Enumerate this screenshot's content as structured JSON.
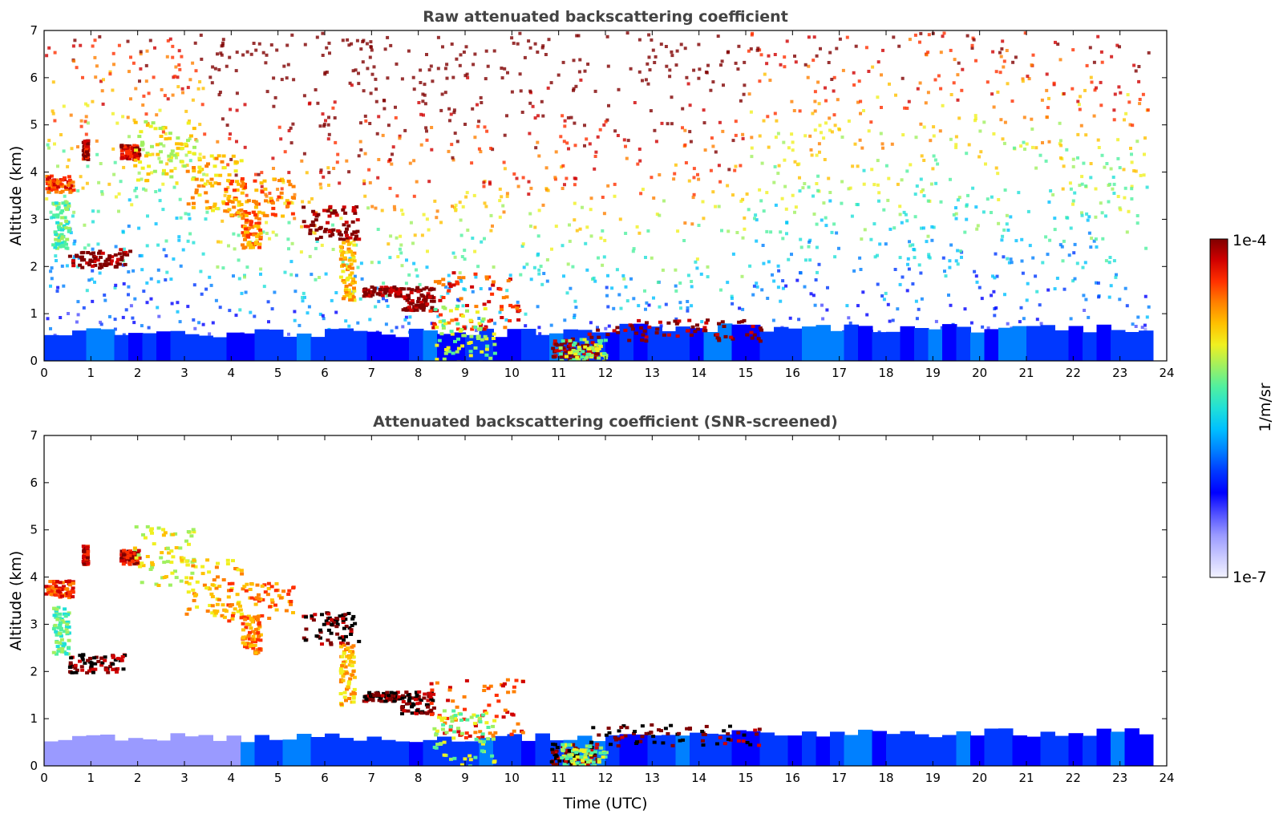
{
  "chart_data": [
    {
      "type": "heatmap",
      "title": "Raw attenuated backscattering coefficient",
      "xlabel": "",
      "ylabel": "Altitude (km)",
      "xlim": [
        0,
        24
      ],
      "ylim": [
        0,
        7
      ],
      "xticks": [
        "0",
        "1",
        "2",
        "3",
        "4",
        "5",
        "6",
        "7",
        "8",
        "9",
        "10",
        "11",
        "12",
        "13",
        "14",
        "15",
        "16",
        "17",
        "18",
        "19",
        "20",
        "21",
        "22",
        "23",
        "24"
      ],
      "yticks": [
        "0",
        "1",
        "2",
        "3",
        "4",
        "5",
        "6",
        "7"
      ],
      "data_end_hour": 23.6,
      "features": [
        {
          "name": "boundary layer",
          "t": [
            0,
            23.6
          ],
          "alt": [
            0,
            0.7
          ]
        },
        {
          "name": "cloud",
          "t": [
            0.5,
            1.8
          ],
          "alt": [
            2.0,
            2.4
          ]
        },
        {
          "name": "cloud",
          "t": [
            5.5,
            6.7
          ],
          "alt": [
            2.6,
            3.3
          ]
        },
        {
          "name": "cloud",
          "t": [
            6.8,
            10.3
          ],
          "alt": [
            1.2,
            1.9
          ]
        },
        {
          "name": "cloud",
          "t": [
            10.8,
            15.3
          ],
          "alt": [
            0.2,
            0.9
          ]
        }
      ]
    },
    {
      "type": "heatmap",
      "title": "Attenuated backscattering coefficient (SNR-screened)",
      "xlabel": "Time (UTC)",
      "ylabel": "Altitude (km)",
      "xlim": [
        0,
        24
      ],
      "ylim": [
        0,
        7
      ],
      "xticks": [
        "0",
        "1",
        "2",
        "3",
        "4",
        "5",
        "6",
        "7",
        "8",
        "9",
        "10",
        "11",
        "12",
        "13",
        "14",
        "15",
        "16",
        "17",
        "18",
        "19",
        "20",
        "21",
        "22",
        "23",
        "24"
      ],
      "yticks": [
        "0",
        "1",
        "2",
        "3",
        "4",
        "5",
        "6",
        "7"
      ],
      "data_end_hour": 23.6
    }
  ],
  "colorbar": {
    "label": "1/m/sr",
    "max_label": "1e-4",
    "min_label": "1e-7",
    "colors": [
      "#f2f2ff",
      "#c8c8ff",
      "#9a9aff",
      "#5050ff",
      "#0000ff",
      "#0038ff",
      "#0080ff",
      "#00c0ff",
      "#20e0d8",
      "#50f0a0",
      "#a0f060",
      "#f0f020",
      "#ffc000",
      "#ff8000",
      "#ff3000",
      "#d00000",
      "#800000"
    ]
  }
}
